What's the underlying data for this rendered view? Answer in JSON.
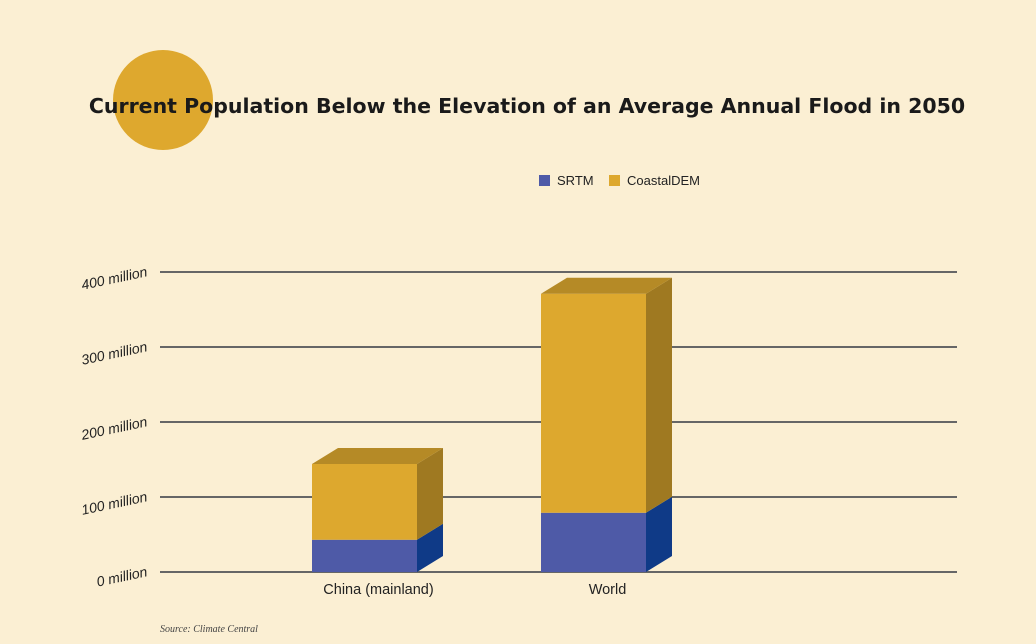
{
  "chart_data": {
    "type": "bar",
    "stacked": true,
    "three_d": true,
    "title": "Current Population Below the Elevation of an Average Annual Flood in 2050",
    "categories": [
      "China (mainland)",
      "World"
    ],
    "series": [
      {
        "name": "SRTM",
        "values": [
          43,
          79
        ],
        "color": "#4E5AA7"
      },
      {
        "name": "CoastalDEM",
        "values": [
          101,
          292
        ],
        "color": "#DDA82E"
      }
    ],
    "y_ticks": [
      0,
      100,
      200,
      300,
      400
    ],
    "y_tick_labels": [
      "0 million",
      "100 million",
      "200 million",
      "300 million",
      "400 million"
    ],
    "ylim": [
      0,
      400
    ],
    "grid": true,
    "legend_position": "top-center",
    "source": "Source: Climate Central",
    "colors": {
      "background": "#FBEFD3",
      "accent_circle": "#DEA82E",
      "grid": "#666666"
    }
  }
}
